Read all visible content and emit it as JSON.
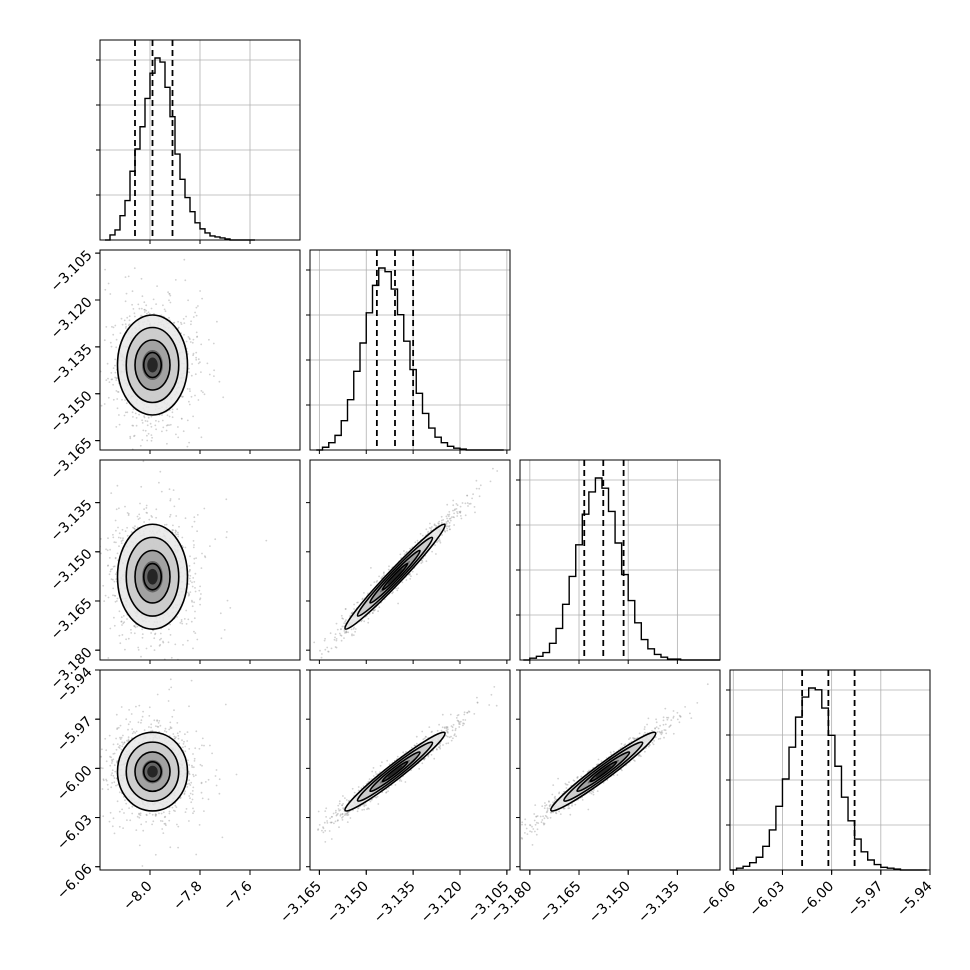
{
  "chart_data": {
    "type": "corner",
    "title": "",
    "parameters": 4,
    "histograms": [
      {
        "param": 0,
        "bins": [
          -8.18,
          -8.16,
          -8.14,
          -8.12,
          -8.1,
          -8.08,
          -8.06,
          -8.04,
          -8.02,
          -8.0,
          -7.98,
          -7.96,
          -7.94,
          -7.92,
          -7.9,
          -7.88,
          -7.86,
          -7.84,
          -7.82,
          -7.8,
          -7.78,
          -7.76,
          -7.74,
          -7.72,
          -7.7,
          -7.68,
          -7.66,
          -7.64,
          -7.62,
          -7.6,
          -7.58
        ],
        "values": [
          0,
          5,
          10,
          24,
          39,
          68,
          90,
          112,
          140,
          165,
          180,
          176,
          151,
          122,
          85,
          60,
          42,
          28,
          17,
          11,
          7,
          4,
          3,
          2,
          1,
          0,
          0,
          0,
          0,
          0
        ],
        "quantiles": [
          -8.06,
          -7.99,
          -7.91
        ]
      },
      {
        "param": 1,
        "bins": [
          -3.166,
          -3.164,
          -3.162,
          -3.16,
          -3.158,
          -3.156,
          -3.154,
          -3.152,
          -3.15,
          -3.148,
          -3.146,
          -3.144,
          -3.142,
          -3.14,
          -3.138,
          -3.136,
          -3.134,
          -3.132,
          -3.13,
          -3.128,
          -3.126,
          -3.124,
          -3.122,
          -3.12,
          -3.118,
          -3.116,
          -3.114,
          -3.112,
          -3.11,
          -3.108,
          -3.106
        ],
        "values": [
          0,
          3,
          8,
          16,
          32,
          55,
          86,
          117,
          150,
          180,
          199,
          195,
          176,
          148,
          119,
          88,
          62,
          40,
          24,
          14,
          8,
          4,
          2,
          1,
          0,
          0,
          0,
          0,
          0,
          0
        ],
        "quantiles": [
          -3.1466,
          -3.1408,
          -3.135
        ]
      },
      {
        "param": 2,
        "bins": [
          -3.182,
          -3.18,
          -3.178,
          -3.176,
          -3.174,
          -3.172,
          -3.17,
          -3.168,
          -3.166,
          -3.164,
          -3.162,
          -3.16,
          -3.158,
          -3.156,
          -3.154,
          -3.152,
          -3.15,
          -3.148,
          -3.146,
          -3.144,
          -3.142,
          -3.14,
          -3.138,
          -3.136,
          -3.134,
          -3.132,
          -3.13,
          -3.128,
          -3.126,
          -3.124,
          -3.122
        ],
        "values": [
          0,
          2,
          4,
          8,
          18,
          34,
          60,
          90,
          124,
          157,
          181,
          196,
          185,
          160,
          126,
          92,
          64,
          40,
          22,
          12,
          6,
          3,
          1,
          1,
          0,
          0,
          0,
          0,
          0,
          0
        ],
        "quantiles": [
          -3.1634,
          -3.1576,
          -3.1514
        ]
      },
      {
        "param": 3,
        "bins": [
          -6.062,
          -6.058,
          -6.054,
          -6.05,
          -6.046,
          -6.042,
          -6.038,
          -6.034,
          -6.03,
          -6.026,
          -6.022,
          -6.018,
          -6.014,
          -6.01,
          -6.006,
          -6.002,
          -5.998,
          -5.994,
          -5.99,
          -5.986,
          -5.982,
          -5.978,
          -5.974,
          -5.97,
          -5.966,
          -5.962,
          -5.958,
          -5.954,
          -5.95,
          -5.946,
          -5.942
        ],
        "values": [
          0,
          2,
          4,
          8,
          14,
          26,
          44,
          70,
          100,
          135,
          168,
          190,
          200,
          198,
          178,
          148,
          114,
          80,
          54,
          34,
          20,
          11,
          6,
          3,
          2,
          1,
          0,
          0,
          0,
          0
        ],
        "quantiles": [
          -6.018,
          -6.002,
          -5.986
        ]
      }
    ],
    "pairs": [
      {
        "x": 0,
        "y": 1,
        "center": [
          -7.99,
          -3.1408
        ],
        "sigma": [
          0.07,
          0.008
        ],
        "corr": 0.0
      },
      {
        "x": 0,
        "y": 2,
        "center": [
          -7.99,
          -3.1576
        ],
        "sigma": [
          0.07,
          0.008
        ],
        "corr": 0.0
      },
      {
        "x": 1,
        "y": 2,
        "center": [
          -3.1408,
          -3.1576
        ],
        "sigma": [
          0.008,
          0.008
        ],
        "corr": 0.98
      },
      {
        "x": 0,
        "y": 3,
        "center": [
          -7.99,
          -6.002
        ],
        "sigma": [
          0.07,
          0.012
        ],
        "corr": 0.0
      },
      {
        "x": 1,
        "y": 3,
        "center": [
          -3.1408,
          -6.002
        ],
        "sigma": [
          0.008,
          0.012
        ],
        "corr": 0.97
      },
      {
        "x": 2,
        "y": 3,
        "center": [
          -3.1576,
          -6.002
        ],
        "sigma": [
          0.008,
          0.012
        ],
        "corr": 0.97
      }
    ],
    "ranges": [
      [
        -8.2,
        -7.4
      ],
      [
        -3.168,
        -3.104
      ],
      [
        -3.183,
        -3.122
      ],
      [
        -6.062,
        -5.94
      ]
    ],
    "x_ticks": [
      {
        "values": [
          -8.0,
          -7.8,
          -7.6
        ],
        "labels": [
          "−8.0",
          "−7.8",
          "−7.6"
        ]
      },
      {
        "values": [
          -3.165,
          -3.15,
          -3.135,
          -3.12,
          -3.105
        ],
        "labels": [
          "−3.165",
          "−3.150",
          "−3.135",
          "−3.120",
          "−3.105"
        ]
      },
      {
        "values": [
          -3.18,
          -3.165,
          -3.15,
          -3.135
        ],
        "labels": [
          "−3.180",
          "−3.165",
          "−3.150",
          "−3.135"
        ]
      },
      {
        "values": [
          -6.06,
          -6.03,
          -6.0,
          -5.97,
          -5.94
        ],
        "labels": [
          "−6.06",
          "−6.03",
          "−6.00",
          "−5.97",
          "−5.94"
        ]
      }
    ],
    "y_ticks": [
      null,
      {
        "values": [
          -3.105,
          -3.12,
          -3.135,
          -3.15,
          -3.165
        ],
        "labels": [
          "−3.105",
          "−3.120",
          "−3.135",
          "−3.150",
          "−3.165"
        ]
      },
      {
        "values": [
          -3.135,
          -3.15,
          -3.165,
          -3.18
        ],
        "labels": [
          "−3.135",
          "−3.150",
          "−3.165",
          "−3.180"
        ]
      },
      {
        "values": [
          -5.94,
          -5.97,
          -6.0,
          -6.03,
          -6.06
        ],
        "labels": [
          "−5.94",
          "−5.97",
          "−6.00",
          "−6.03",
          "−6.06"
        ]
      }
    ],
    "grid": true,
    "legend": "none"
  },
  "colors": {
    "background": "#ffffff",
    "line": "#000000",
    "grid": "#b0b0b0",
    "scatter": "#9a9a9a"
  }
}
